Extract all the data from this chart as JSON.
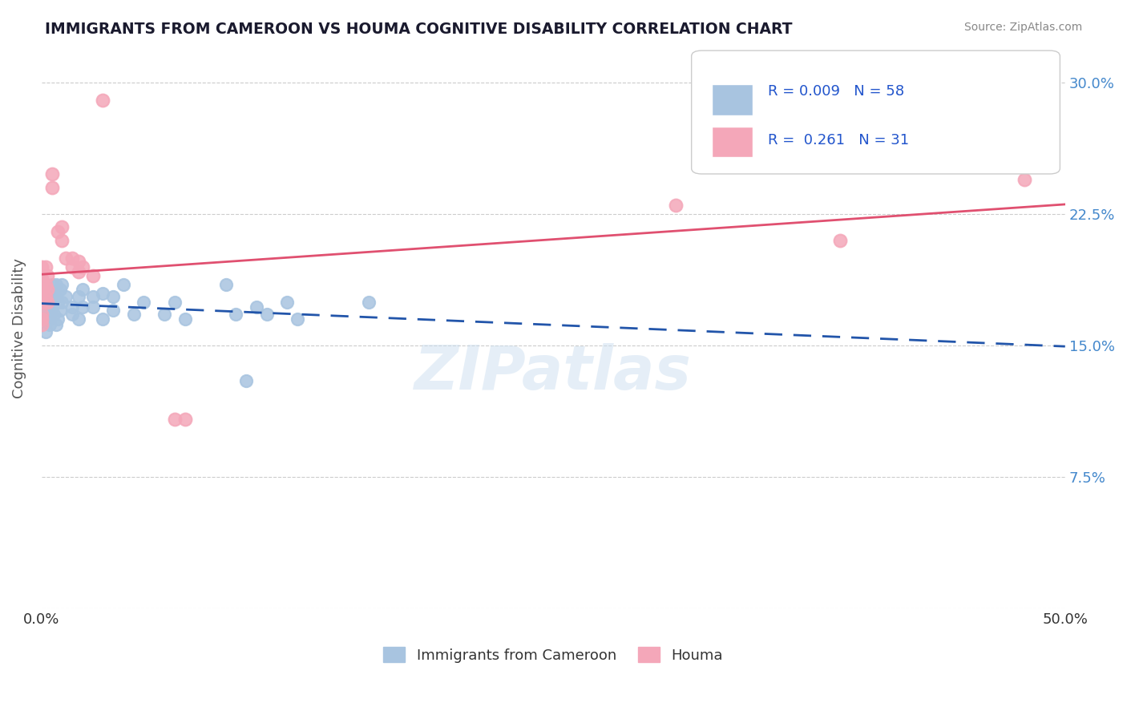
{
  "title": "IMMIGRANTS FROM CAMEROON VS HOUMA COGNITIVE DISABILITY CORRELATION CHART",
  "source": "Source: ZipAtlas.com",
  "ylabel": "Cognitive Disability",
  "xlim": [
    0.0,
    0.5
  ],
  "ylim": [
    0.0,
    0.32
  ],
  "yticks": [
    0.0,
    0.075,
    0.15,
    0.225,
    0.3
  ],
  "ytick_labels": [
    "",
    "7.5%",
    "15.0%",
    "22.5%",
    "30.0%"
  ],
  "xticks": [
    0.0,
    0.5
  ],
  "xtick_labels": [
    "0.0%",
    "50.0%"
  ],
  "blue_color": "#a8c4e0",
  "pink_color": "#f4a7b9",
  "blue_line_color": "#2255aa",
  "pink_line_color": "#e05070",
  "blue_label": "Immigrants from Cameroon",
  "pink_label": "Houma",
  "watermark": "ZIPatlas",
  "title_color": "#1a1a2e",
  "tick_color_right": "#4488cc",
  "blue_scatter": [
    [
      0.0,
      0.188
    ],
    [
      0.0,
      0.175
    ],
    [
      0.0,
      0.175
    ],
    [
      0.0,
      0.168
    ],
    [
      0.002,
      0.178
    ],
    [
      0.002,
      0.172
    ],
    [
      0.002,
      0.165
    ],
    [
      0.002,
      0.158
    ],
    [
      0.003,
      0.182
    ],
    [
      0.003,
      0.175
    ],
    [
      0.003,
      0.168
    ],
    [
      0.003,
      0.165
    ],
    [
      0.004,
      0.178
    ],
    [
      0.004,
      0.172
    ],
    [
      0.004,
      0.165
    ],
    [
      0.004,
      0.162
    ],
    [
      0.005,
      0.185
    ],
    [
      0.005,
      0.178
    ],
    [
      0.005,
      0.172
    ],
    [
      0.006,
      0.18
    ],
    [
      0.006,
      0.175
    ],
    [
      0.006,
      0.168
    ],
    [
      0.007,
      0.185
    ],
    [
      0.007,
      0.178
    ],
    [
      0.007,
      0.162
    ],
    [
      0.008,
      0.175
    ],
    [
      0.008,
      0.165
    ],
    [
      0.009,
      0.182
    ],
    [
      0.009,
      0.17
    ],
    [
      0.01,
      0.185
    ],
    [
      0.01,
      0.175
    ],
    [
      0.012,
      0.178
    ],
    [
      0.015,
      0.172
    ],
    [
      0.015,
      0.168
    ],
    [
      0.018,
      0.178
    ],
    [
      0.018,
      0.165
    ],
    [
      0.02,
      0.182
    ],
    [
      0.02,
      0.172
    ],
    [
      0.025,
      0.178
    ],
    [
      0.025,
      0.172
    ],
    [
      0.03,
      0.18
    ],
    [
      0.03,
      0.165
    ],
    [
      0.035,
      0.178
    ],
    [
      0.035,
      0.17
    ],
    [
      0.04,
      0.185
    ],
    [
      0.045,
      0.168
    ],
    [
      0.05,
      0.175
    ],
    [
      0.06,
      0.168
    ],
    [
      0.065,
      0.175
    ],
    [
      0.07,
      0.165
    ],
    [
      0.09,
      0.185
    ],
    [
      0.095,
      0.168
    ],
    [
      0.1,
      0.13
    ],
    [
      0.105,
      0.172
    ],
    [
      0.11,
      0.168
    ],
    [
      0.12,
      0.175
    ],
    [
      0.125,
      0.165
    ],
    [
      0.16,
      0.175
    ]
  ],
  "pink_scatter": [
    [
      0.0,
      0.195
    ],
    [
      0.0,
      0.188
    ],
    [
      0.0,
      0.182
    ],
    [
      0.0,
      0.175
    ],
    [
      0.0,
      0.168
    ],
    [
      0.0,
      0.165
    ],
    [
      0.0,
      0.162
    ],
    [
      0.002,
      0.195
    ],
    [
      0.002,
      0.185
    ],
    [
      0.002,
      0.178
    ],
    [
      0.003,
      0.19
    ],
    [
      0.003,
      0.182
    ],
    [
      0.003,
      0.175
    ],
    [
      0.005,
      0.248
    ],
    [
      0.005,
      0.24
    ],
    [
      0.008,
      0.215
    ],
    [
      0.01,
      0.218
    ],
    [
      0.01,
      0.21
    ],
    [
      0.012,
      0.2
    ],
    [
      0.015,
      0.2
    ],
    [
      0.015,
      0.195
    ],
    [
      0.018,
      0.198
    ],
    [
      0.018,
      0.192
    ],
    [
      0.02,
      0.195
    ],
    [
      0.025,
      0.19
    ],
    [
      0.03,
      0.29
    ],
    [
      0.065,
      0.108
    ],
    [
      0.07,
      0.108
    ],
    [
      0.31,
      0.23
    ],
    [
      0.39,
      0.21
    ],
    [
      0.48,
      0.245
    ]
  ]
}
